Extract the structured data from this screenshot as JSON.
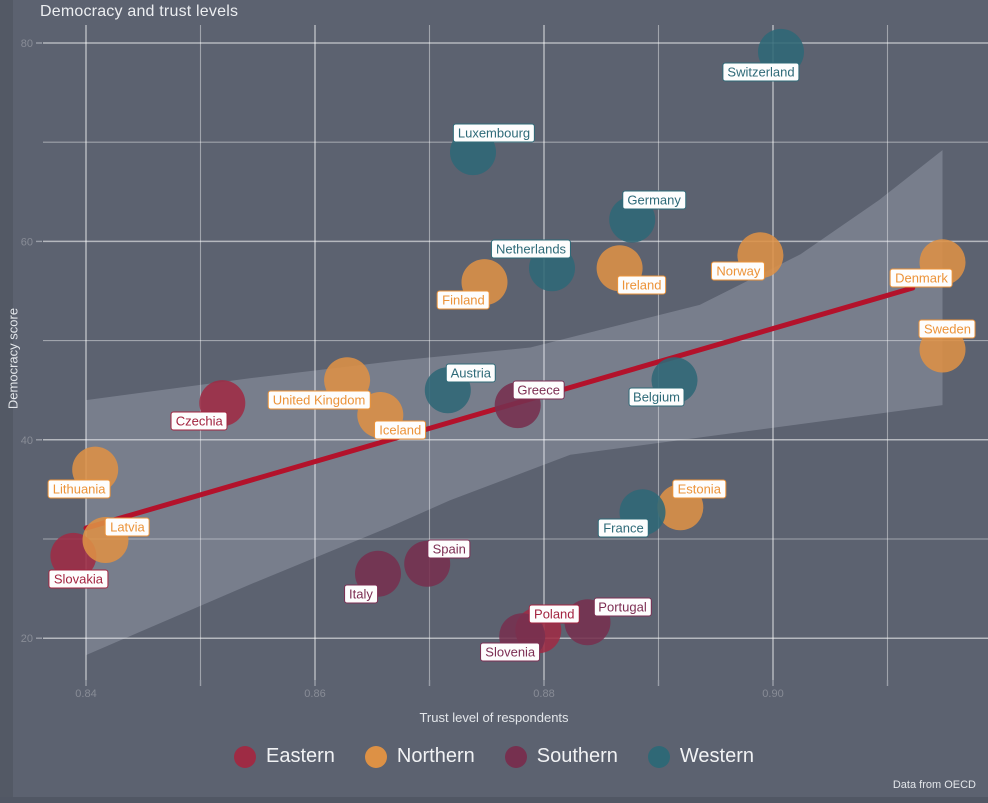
{
  "title": "Democracy and trust levels",
  "caption": "Data from OECD",
  "legend": {
    "position": "bottom",
    "items": [
      {
        "label": "Eastern",
        "color": "#9e2b44"
      },
      {
        "label": "Northern",
        "color": "#dd9145"
      },
      {
        "label": "Southern",
        "color": "#76304f"
      },
      {
        "label": "Western",
        "color": "#2f6876"
      }
    ]
  },
  "chart_data": {
    "type": "scatter",
    "title": "Democracy and trust levels",
    "xlabel": "Trust level of respondents",
    "ylabel": "Democracy score",
    "xlim": [
      0.836,
      0.919
    ],
    "ylim": [
      15.8,
      81.8
    ],
    "grid": true,
    "legend_position": "bottom",
    "point_radius_px": 23,
    "x_major_ticks": [
      0.84,
      0.86,
      0.88,
      0.9
    ],
    "x_tick_labels": [
      "0.84",
      "0.86",
      "0.88",
      "0.90"
    ],
    "x_minor_ticks": [
      0.85,
      0.87,
      0.89,
      0.91
    ],
    "y_major_ticks": [
      20,
      40,
      60,
      80
    ],
    "y_tick_labels": [
      "20",
      "40",
      "60",
      "80"
    ],
    "y_minor_ticks": [
      30,
      50,
      70
    ],
    "series": [
      {
        "name": "Eastern",
        "color": "#9e2b44",
        "label_color": "#a32440",
        "points": [
          {
            "label": "Czechia",
            "x": 0.8519,
            "y": 43.7,
            "label_dx": -23,
            "label_dy": 18
          },
          {
            "label": "Slovakia",
            "x": 0.8389,
            "y": 28.3,
            "label_dx": 5,
            "label_dy": 23
          },
          {
            "label": "Poland",
            "x": 0.8795,
            "y": 20.8,
            "label_dx": 16,
            "label_dy": -16
          }
        ]
      },
      {
        "name": "Northern",
        "color": "#dd9145",
        "label_color": "#ec9339",
        "points": [
          {
            "label": "Lithuania",
            "x": 0.8408,
            "y": 37.0,
            "label_dx": -16,
            "label_dy": 19
          },
          {
            "label": "Latvia",
            "x": 0.8417,
            "y": 29.9,
            "label_dx": 22,
            "label_dy": -13
          },
          {
            "label": "United Kingdom",
            "x": 0.8628,
            "y": 46.0,
            "label_dx": -28,
            "label_dy": 20
          },
          {
            "label": "Iceland",
            "x": 0.8657,
            "y": 42.5,
            "label_dx": 20,
            "label_dy": 15
          },
          {
            "label": "Finland",
            "x": 0.8748,
            "y": 55.9,
            "label_dx": -21,
            "label_dy": 18
          },
          {
            "label": "Ireland",
            "x": 0.8866,
            "y": 57.3,
            "label_dx": 22,
            "label_dy": 17
          },
          {
            "label": "Norway",
            "x": 0.8989,
            "y": 58.6,
            "label_dx": -22,
            "label_dy": 16
          },
          {
            "label": "Denmark",
            "x": 0.9148,
            "y": 57.9,
            "label_dx": -21,
            "label_dy": 16
          },
          {
            "label": "Sweden",
            "x": 0.9148,
            "y": 49.1,
            "label_dx": 5,
            "label_dy": -21
          },
          {
            "label": "Estonia",
            "x": 0.8919,
            "y": 33.2,
            "label_dx": 19,
            "label_dy": -18
          }
        ]
      },
      {
        "name": "Southern",
        "color": "#76304f",
        "label_color": "#7d2e53",
        "points": [
          {
            "label": "Greece",
            "x": 0.8777,
            "y": 43.5,
            "label_dx": 21,
            "label_dy": -15
          },
          {
            "label": "Spain",
            "x": 0.8698,
            "y": 27.5,
            "label_dx": 22,
            "label_dy": -15
          },
          {
            "label": "Italy",
            "x": 0.8655,
            "y": 26.5,
            "label_dx": -17,
            "label_dy": 20
          },
          {
            "label": "Portugal",
            "x": 0.8838,
            "y": 21.6,
            "label_dx": 35,
            "label_dy": -15
          },
          {
            "label": "Slovenia",
            "x": 0.8781,
            "y": 20.2,
            "label_dx": -12,
            "label_dy": 16
          }
        ]
      },
      {
        "name": "Western",
        "color": "#2f6876",
        "label_color": "#2e6a78",
        "points": [
          {
            "label": "Switzerland",
            "x": 0.9007,
            "y": 79.1,
            "label_dx": -20,
            "label_dy": 20
          },
          {
            "label": "Luxembourg",
            "x": 0.8738,
            "y": 69.0,
            "label_dx": 21,
            "label_dy": -19
          },
          {
            "label": "Germany",
            "x": 0.8877,
            "y": 62.2,
            "label_dx": 22,
            "label_dy": -20
          },
          {
            "label": "Netherlands",
            "x": 0.8807,
            "y": 57.3,
            "label_dx": -21,
            "label_dy": -19
          },
          {
            "label": "Austria",
            "x": 0.8716,
            "y": 45.0,
            "label_dx": 23,
            "label_dy": -17
          },
          {
            "label": "Belgium",
            "x": 0.8914,
            "y": 46.0,
            "label_dx": -18,
            "label_dy": 17
          },
          {
            "label": "France",
            "x": 0.8886,
            "y": 32.7,
            "label_dx": -19,
            "label_dy": 16
          }
        ]
      }
    ],
    "trend_line": {
      "color": "#b3122b",
      "points": [
        [
          0.84,
          31.1
        ],
        [
          0.9122,
          55.3
        ]
      ]
    },
    "ci_band": {
      "color": "rgba(222,228,240,0.22)",
      "outline": [
        [
          0.84,
          44.0
        ],
        [
          0.8543,
          46.2
        ],
        [
          0.8674,
          48.0
        ],
        [
          0.8788,
          49.3
        ],
        [
          0.8936,
          53.6
        ],
        [
          0.9024,
          58.7
        ],
        [
          0.9093,
          64.2
        ],
        [
          0.9148,
          69.2
        ],
        [
          0.9148,
          43.5
        ],
        [
          0.8954,
          40.5
        ],
        [
          0.8823,
          38.5
        ],
        [
          0.8718,
          33.9
        ],
        [
          0.8665,
          31.2
        ],
        [
          0.8543,
          25.4
        ],
        [
          0.84,
          18.3
        ]
      ]
    }
  }
}
